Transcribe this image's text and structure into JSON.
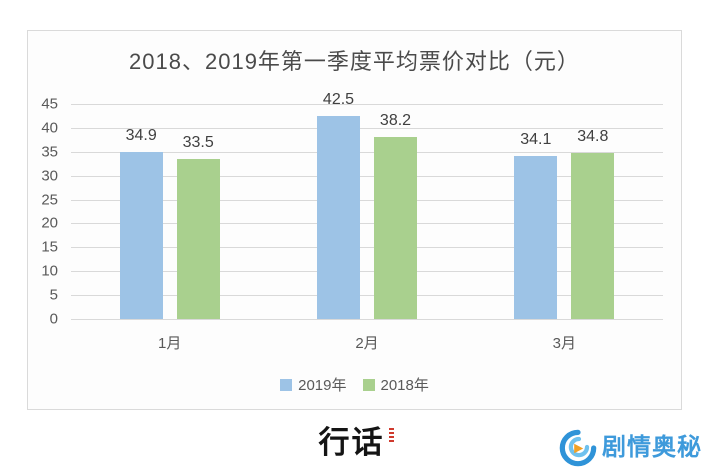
{
  "chart_data": {
    "type": "bar",
    "title": "2018、2019年第一季度平均票价对比（元）",
    "categories": [
      "1月",
      "2月",
      "3月"
    ],
    "series": [
      {
        "name": "2019年",
        "color": "#9dc3e6",
        "values": [
          34.9,
          42.5,
          34.1
        ]
      },
      {
        "name": "2018年",
        "color": "#a9d08e",
        "values": [
          33.5,
          38.2,
          34.8
        ]
      }
    ],
    "xlabel": "",
    "ylabel": "",
    "ylim": [
      0,
      45
    ],
    "yticks": [
      0,
      5,
      10,
      15,
      20,
      25,
      30,
      35,
      40,
      45
    ],
    "grid": true,
    "legend_position": "bottom",
    "value_labels": true
  },
  "footer": {
    "brand_center_text": "行话",
    "brand_right_text": "剧情奥秘"
  },
  "colors": {
    "bar_2019": "#9dc3e6",
    "bar_2018": "#a9d08e",
    "gridline": "#d9d9d9",
    "title_text": "#4a4a4a",
    "axis_text": "#595959",
    "value_text": "#404040",
    "card_border": "#dadada",
    "brand_right_blue": "#3e9adb",
    "brand_right_orange": "#f2a024",
    "brand_center_black": "#141414",
    "brand_center_red": "#cf3a2e"
  }
}
